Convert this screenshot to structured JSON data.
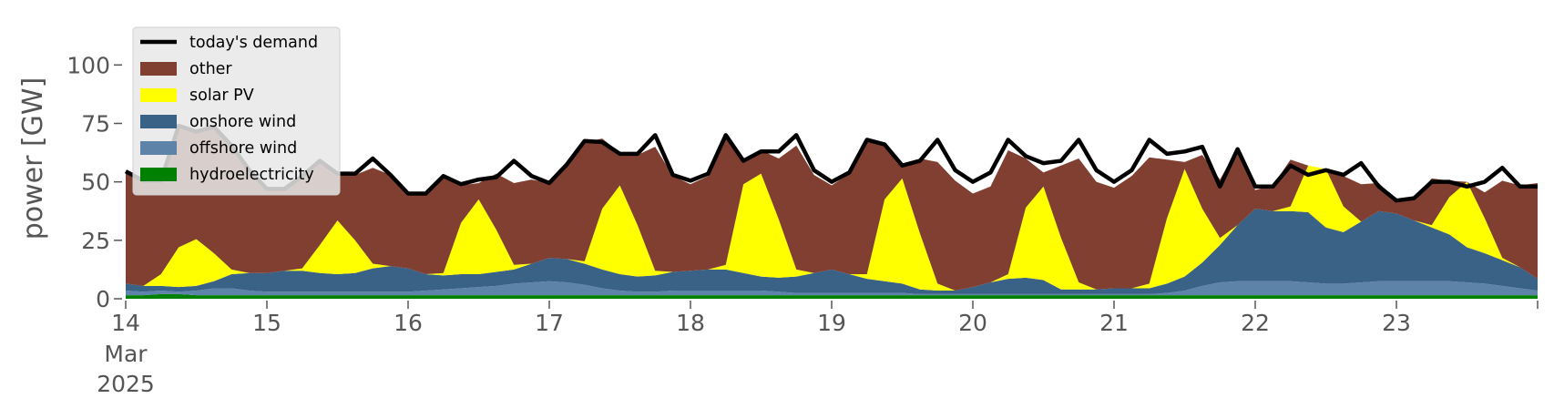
{
  "chart_data": {
    "type": "area",
    "ylabel": "power [GW]",
    "xlabel": "",
    "ylim": [
      0,
      120
    ],
    "yticks": [
      0,
      25,
      50,
      75,
      100
    ],
    "grid": false,
    "legend_position": "top-left",
    "x_start": "2025-03-14T00:00",
    "x_end": "2025-03-24T00:00",
    "x_ticks": [
      {
        "date": "2025-03-14",
        "label": "14",
        "sub": [
          "Mar",
          "2025"
        ]
      },
      {
        "date": "2025-03-15",
        "label": "15"
      },
      {
        "date": "2025-03-16",
        "label": "16"
      },
      {
        "date": "2025-03-17",
        "label": "17"
      },
      {
        "date": "2025-03-18",
        "label": "18"
      },
      {
        "date": "2025-03-19",
        "label": "19"
      },
      {
        "date": "2025-03-20",
        "label": "20"
      },
      {
        "date": "2025-03-21",
        "label": "21"
      },
      {
        "date": "2025-03-22",
        "label": "22"
      },
      {
        "date": "2025-03-23",
        "label": "23"
      }
    ],
    "x": [
      "2025-03-14T00:00",
      "2025-03-14T03:00",
      "2025-03-14T06:00",
      "2025-03-14T09:00",
      "2025-03-14T12:00",
      "2025-03-14T15:00",
      "2025-03-14T18:00",
      "2025-03-14T21:00",
      "2025-03-15T00:00",
      "2025-03-15T03:00",
      "2025-03-15T06:00",
      "2025-03-15T09:00",
      "2025-03-15T12:00",
      "2025-03-15T15:00",
      "2025-03-15T18:00",
      "2025-03-15T21:00",
      "2025-03-16T00:00",
      "2025-03-16T03:00",
      "2025-03-16T06:00",
      "2025-03-16T09:00",
      "2025-03-16T12:00",
      "2025-03-16T15:00",
      "2025-03-16T18:00",
      "2025-03-16T21:00",
      "2025-03-17T00:00",
      "2025-03-17T03:00",
      "2025-03-17T06:00",
      "2025-03-17T09:00",
      "2025-03-17T12:00",
      "2025-03-17T15:00",
      "2025-03-17T18:00",
      "2025-03-17T21:00",
      "2025-03-18T00:00",
      "2025-03-18T03:00",
      "2025-03-18T06:00",
      "2025-03-18T09:00",
      "2025-03-18T12:00",
      "2025-03-18T15:00",
      "2025-03-18T18:00",
      "2025-03-18T21:00",
      "2025-03-19T00:00",
      "2025-03-19T03:00",
      "2025-03-19T06:00",
      "2025-03-19T09:00",
      "2025-03-19T12:00",
      "2025-03-19T15:00",
      "2025-03-19T18:00",
      "2025-03-19T21:00",
      "2025-03-20T00:00",
      "2025-03-20T03:00",
      "2025-03-20T06:00",
      "2025-03-20T09:00",
      "2025-03-20T12:00",
      "2025-03-20T15:00",
      "2025-03-20T18:00",
      "2025-03-20T21:00",
      "2025-03-21T00:00",
      "2025-03-21T03:00",
      "2025-03-21T06:00",
      "2025-03-21T09:00",
      "2025-03-21T12:00",
      "2025-03-21T15:00",
      "2025-03-21T18:00",
      "2025-03-21T21:00",
      "2025-03-22T00:00",
      "2025-03-22T03:00",
      "2025-03-22T06:00",
      "2025-03-22T09:00",
      "2025-03-22T12:00",
      "2025-03-22T15:00",
      "2025-03-22T18:00",
      "2025-03-22T21:00",
      "2025-03-23T00:00",
      "2025-03-23T03:00",
      "2025-03-23T06:00",
      "2025-03-23T09:00",
      "2025-03-23T12:00",
      "2025-03-23T15:00",
      "2025-03-23T18:00",
      "2025-03-23T21:00",
      "2025-03-24T00:00"
    ],
    "series": [
      {
        "name": "hydroelectricity",
        "color": "#008000",
        "kind": "area",
        "values": [
          1.5,
          1.5,
          2.0,
          2.0,
          1.5,
          1.5,
          1.5,
          1.5,
          1.5,
          1.5,
          1.5,
          1.5,
          1.5,
          1.5,
          1.5,
          1.5,
          1.5,
          1.5,
          1.5,
          1.5,
          1.5,
          1.5,
          1.5,
          1.5,
          1.5,
          1.5,
          1.5,
          1.5,
          1.5,
          1.5,
          1.5,
          1.5,
          1.5,
          1.5,
          1.5,
          1.5,
          1.5,
          1.5,
          1.5,
          1.5,
          1.5,
          1.5,
          1.5,
          1.5,
          1.5,
          1.5,
          1.5,
          1.5,
          1.5,
          1.5,
          1.5,
          1.5,
          1.5,
          1.5,
          1.5,
          1.5,
          1.5,
          1.5,
          1.5,
          1.5,
          1.5,
          1.5,
          1.5,
          1.5,
          1.5,
          1.5,
          1.5,
          1.5,
          1.5,
          1.5,
          1.5,
          1.5,
          1.5,
          1.5,
          1.5,
          1.5,
          1.5,
          1.5,
          1.5,
          1.5,
          1.5
        ]
      },
      {
        "name": "offshore wind",
        "color": "#5e83a8",
        "kind": "area",
        "values": [
          2,
          1.5,
          1.5,
          1,
          2,
          3,
          3,
          2,
          1.5,
          1.5,
          1.5,
          1.5,
          1.5,
          1.5,
          1.5,
          1.5,
          1.5,
          2,
          2.5,
          3,
          3.5,
          4,
          5,
          5.5,
          6,
          5.5,
          4.5,
          3,
          2,
          1.5,
          1.5,
          2,
          2,
          2,
          2,
          2,
          2,
          1.5,
          1,
          1,
          1,
          1,
          1,
          1,
          1,
          0.5,
          0.5,
          0.5,
          0.5,
          0.5,
          0.5,
          0.5,
          0.5,
          0.5,
          0.5,
          0.5,
          0.5,
          0.5,
          0.5,
          1,
          2,
          4,
          5.5,
          6,
          6,
          6,
          6,
          5.5,
          5,
          5,
          5.5,
          6,
          6,
          6,
          6,
          6,
          5.5,
          5,
          4,
          3,
          2
        ]
      },
      {
        "name": "onshore wind",
        "color": "#3a6186",
        "kind": "area",
        "values": [
          3,
          2.5,
          2,
          2,
          2,
          3,
          6,
          7.5,
          8,
          9,
          9,
          8,
          7.5,
          8,
          10,
          11,
          10,
          7,
          6,
          6,
          5.5,
          6,
          6,
          8,
          10,
          10,
          9,
          8,
          7,
          6.5,
          7,
          8,
          8.5,
          9,
          9,
          7.5,
          6,
          6,
          7,
          8.5,
          10,
          8,
          6,
          5,
          4,
          2,
          1.5,
          1.5,
          3,
          5,
          6.5,
          7,
          6,
          2,
          2,
          2,
          2.5,
          2.5,
          2.5,
          4,
          6,
          10,
          16,
          24,
          31,
          30,
          30,
          30,
          24,
          22,
          26,
          30,
          29,
          26,
          23,
          20,
          15,
          13,
          11,
          9,
          5
        ]
      },
      {
        "name": "solar PV",
        "color": "#ffff00",
        "kind": "area",
        "values": [
          0,
          0,
          5,
          17,
          20,
          12,
          2,
          0,
          0,
          0,
          1,
          12,
          23,
          14,
          2,
          0,
          0,
          0,
          1,
          22,
          32,
          18,
          2,
          0,
          0,
          0,
          1,
          26,
          38,
          22,
          2,
          0,
          0,
          0,
          2,
          38,
          44,
          25,
          3,
          0,
          0,
          0,
          2,
          35,
          45,
          24,
          3,
          0,
          0,
          0,
          2,
          30,
          40,
          22,
          3,
          0,
          0,
          0,
          2,
          28,
          46,
          23,
          3,
          0,
          0,
          0,
          2,
          20,
          25,
          11,
          0,
          0,
          0,
          0,
          1,
          16,
          28,
          15,
          1,
          0,
          0
        ]
      },
      {
        "name": "other",
        "color": "#803f30",
        "kind": "area",
        "values": [
          48,
          45,
          40,
          52,
          46,
          54,
          53,
          44,
          36,
          35,
          39,
          36,
          20,
          28,
          41,
          39,
          32,
          35,
          42,
          16,
          7,
          24,
          35,
          36,
          32,
          40,
          51,
          30,
          14,
          30,
          53,
          41,
          37,
          40,
          55,
          10,
          10,
          26,
          53,
          42,
          36,
          43,
          57,
          23,
          6,
          32,
          52,
          47,
          40,
          41,
          53,
          21,
          6,
          31,
          53,
          46,
          43,
          48,
          54,
          25,
          3,
          23,
          25,
          33,
          8,
          11,
          20,
          0,
          0,
          13,
          16,
          12,
          6,
          9,
          20,
          7,
          0,
          11,
          33,
          35,
          41
        ]
      },
      {
        "name": "today's demand",
        "color": "#000000",
        "kind": "line",
        "values": [
          54.5,
          50.5,
          50.5,
          74,
          71.5,
          73.5,
          65.5,
          55,
          47,
          47,
          52.5,
          59,
          53.5,
          53.5,
          60,
          53,
          45,
          45,
          52.5,
          49,
          51,
          52,
          59,
          52.5,
          49.5,
          57.5,
          67.5,
          67,
          62,
          62,
          70,
          53,
          50.5,
          53.5,
          70,
          59,
          63,
          63,
          70,
          55,
          50,
          54,
          68,
          66,
          57,
          59,
          68,
          55,
          50,
          54,
          68,
          61,
          58,
          59,
          68,
          55,
          50,
          55,
          68,
          62,
          63,
          65,
          48,
          64,
          48,
          48,
          57,
          53,
          55,
          53,
          58,
          48,
          42,
          43,
          50,
          50,
          48,
          50,
          56,
          48,
          48
        ]
      }
    ]
  }
}
